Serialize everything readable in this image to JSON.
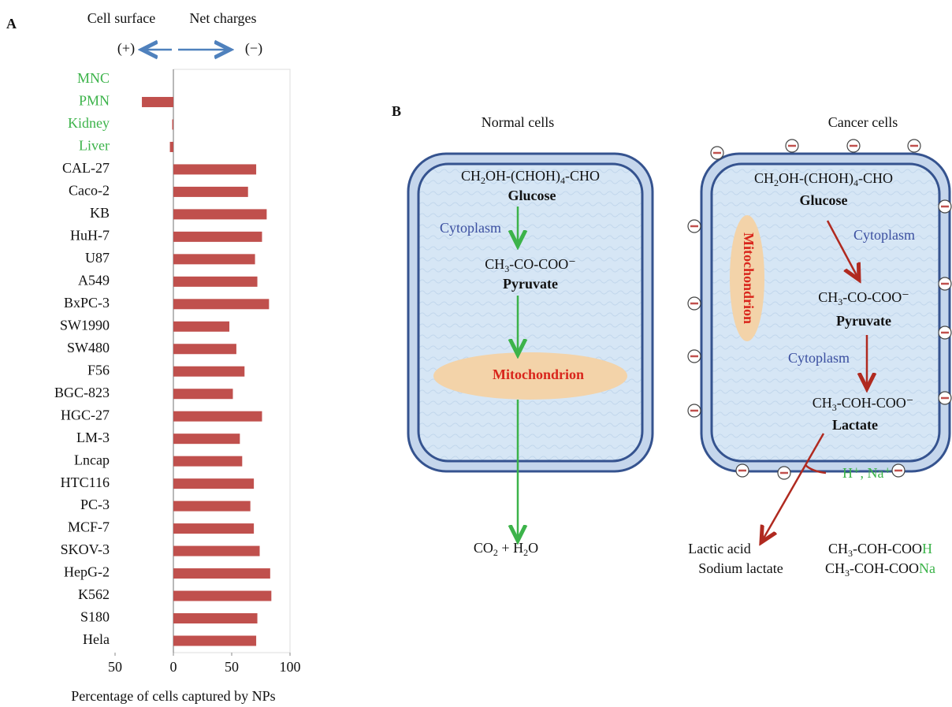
{
  "chart_data": {
    "type": "bar",
    "orientation": "horizontal",
    "panel_label": "A",
    "header_left": "Cell surface",
    "header_right": "Net charges",
    "positive_sign": "(+)",
    "negative_sign": "(−)",
    "xlabel": "Percentage of cells captured by NPs",
    "categories": [
      "MNC",
      "PMN",
      "Kidney",
      "Liver",
      "CAL-27",
      "Caco-2",
      "KB",
      "HuH-7",
      "U87",
      "A549",
      "BxPC-3",
      "SW1990",
      "SW480",
      "F56",
      "BGC-823",
      "HGC-27",
      "LM-3",
      "Lncap",
      "HTC116",
      "PC-3",
      "MCF-7",
      "SKOV-3",
      "HepG-2",
      "K562",
      "S180",
      "Hela"
    ],
    "label_colors": [
      "#3cb34a",
      "#3cb34a",
      "#3cb34a",
      "#3cb34a",
      "#111111",
      "#111111",
      "#111111",
      "#111111",
      "#111111",
      "#111111",
      "#111111",
      "#111111",
      "#111111",
      "#111111",
      "#111111",
      "#111111",
      "#111111",
      "#111111",
      "#111111",
      "#111111",
      "#111111",
      "#111111",
      "#111111",
      "#111111",
      "#111111",
      "#111111"
    ],
    "values": [
      0,
      -27,
      -1,
      -3,
      71,
      64,
      80,
      76,
      70,
      72,
      82,
      48,
      54,
      61,
      51,
      76,
      57,
      59,
      69,
      66,
      69,
      74,
      83,
      84,
      72,
      71
    ],
    "color": "#c0504d",
    "xlim": [
      -50,
      100
    ],
    "xticks": [
      {
        "value": -50,
        "label": "50"
      },
      0,
      50,
      100
    ]
  },
  "panel_b": {
    "label": "B",
    "normal_cells": {
      "title": "Normal cells",
      "glucose_formula": [
        "CH",
        "2",
        "OH-(CHOH)",
        "4",
        "-CHO"
      ],
      "glucose": "Glucose",
      "cytoplasm": "Cytoplasm",
      "pyruvate_formula": [
        "CH",
        "3",
        "-CO-COO⁻"
      ],
      "pyruvate": "Pyruvate",
      "mitochondrion": "Mitochondrion",
      "products": [
        "CO",
        "2",
        " + H",
        "2",
        "O"
      ]
    },
    "cancer_cells": {
      "title": "Cancer cells",
      "glucose_formula": [
        "CH",
        "2",
        "OH-(CHOH)",
        "4",
        "-CHO"
      ],
      "glucose": "Glucose",
      "cytoplasm_1": "Cytoplasm",
      "mitochondrion": "Mitochondrion",
      "pyruvate_formula": [
        "CH",
        "3",
        "-CO-COO⁻"
      ],
      "pyruvate": "Pyruvate",
      "cytoplasm_2": "Cytoplasm",
      "lactate_formula": [
        "CH",
        "3",
        "-COH-COO⁻"
      ],
      "lactate": "Lactate",
      "ions": "H⁺,  Na⁺",
      "lactic_acid": "Lactic acid",
      "lactic_acid_formula": [
        "CH",
        "3",
        "-COH-COO",
        "H"
      ],
      "sodium_lactate": "Sodium lactate",
      "sodium_lactate_formula": [
        "CH",
        "3",
        "-COH-COO",
        "Na"
      ]
    }
  }
}
